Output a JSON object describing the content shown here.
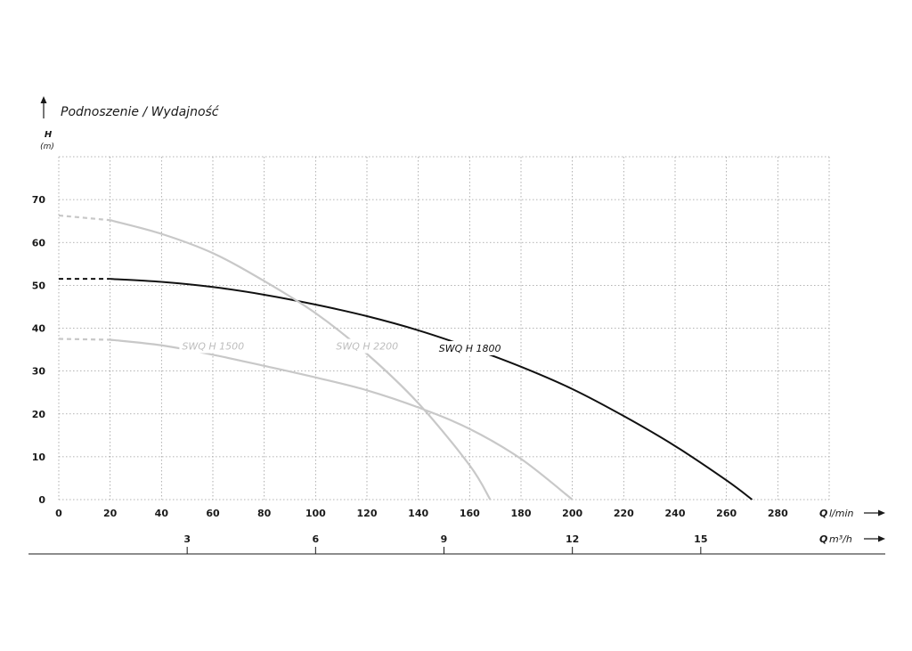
{
  "chart_data": {
    "type": "line",
    "title": "Podnoszenie / Wydajność",
    "ylabel": "H",
    "yunit": "(m)",
    "xlabel": "Q",
    "xunit": "l/min",
    "x2label": "Q",
    "x2unit": "m³/h",
    "xlim": [
      0,
      300
    ],
    "ylim": [
      0,
      80
    ],
    "x_ticks": [
      0,
      20,
      40,
      60,
      80,
      100,
      120,
      140,
      160,
      180,
      200,
      220,
      240,
      260,
      280
    ],
    "y_ticks": [
      0,
      10,
      20,
      30,
      40,
      50,
      60,
      70
    ],
    "x2_ticks": [
      3,
      6,
      9,
      12,
      15
    ],
    "grid": true,
    "series": [
      {
        "name": "SWQ H 1500",
        "color": "#c8c8c8",
        "dashed_until": 20,
        "label_at": [
          48,
          35
        ],
        "x": [
          0,
          20,
          40,
          60,
          80,
          100,
          120,
          140,
          160,
          180,
          200
        ],
        "y": [
          37.5,
          37.3,
          36,
          33.8,
          31.2,
          28.5,
          25.5,
          21.5,
          16.5,
          9.5,
          0
        ]
      },
      {
        "name": "SWQ H 1800",
        "color": "#111111",
        "dashed_until": 20,
        "label_at": [
          148,
          34.5
        ],
        "x": [
          0,
          20,
          40,
          60,
          80,
          100,
          120,
          140,
          160,
          180,
          200,
          220,
          240,
          260,
          270
        ],
        "y": [
          51.5,
          51.5,
          50.8,
          49.6,
          47.8,
          45.5,
          42.8,
          39.5,
          35.5,
          31,
          25.8,
          19.5,
          12.5,
          4.5,
          0
        ]
      },
      {
        "name": "SWQ H 2200",
        "color": "#c8c8c8",
        "dashed_until": 20,
        "label_at": [
          108,
          35
        ],
        "x": [
          0,
          20,
          40,
          60,
          80,
          100,
          120,
          140,
          160,
          168
        ],
        "y": [
          66.3,
          65.2,
          62,
          57.5,
          51,
          43.5,
          34,
          22.5,
          8,
          0
        ]
      }
    ]
  }
}
